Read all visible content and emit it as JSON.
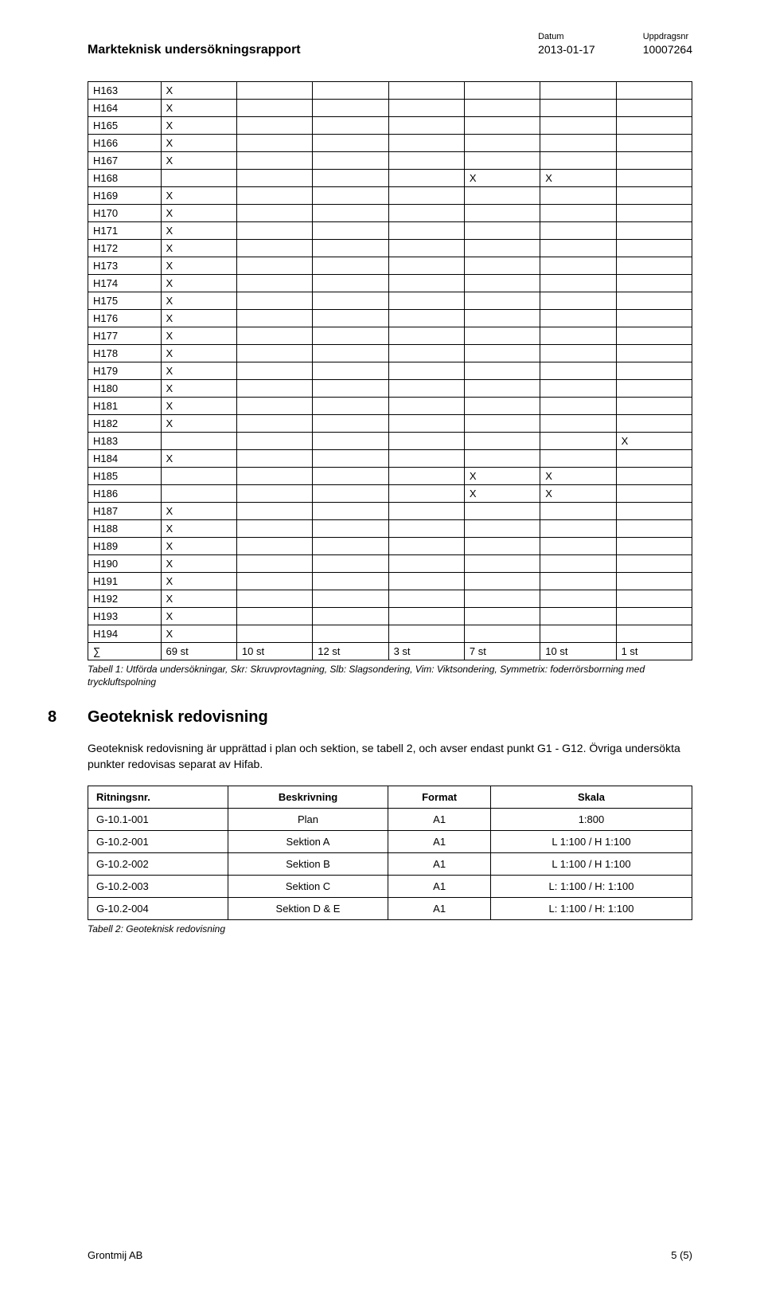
{
  "header": {
    "title": "Markteknisk undersökningsrapport",
    "date_label": "Datum",
    "date_value": "2013-01-17",
    "assignment_label": "Uppdragsnr",
    "assignment_value": "10007264"
  },
  "main_table": {
    "rows": [
      {
        "id": "H163",
        "cols": [
          "X",
          "",
          "",
          "",
          "",
          "",
          ""
        ]
      },
      {
        "id": "H164",
        "cols": [
          "X",
          "",
          "",
          "",
          "",
          "",
          ""
        ]
      },
      {
        "id": "H165",
        "cols": [
          "X",
          "",
          "",
          "",
          "",
          "",
          ""
        ]
      },
      {
        "id": "H166",
        "cols": [
          "X",
          "",
          "",
          "",
          "",
          "",
          ""
        ]
      },
      {
        "id": "H167",
        "cols": [
          "X",
          "",
          "",
          "",
          "",
          "",
          ""
        ]
      },
      {
        "id": "H168",
        "cols": [
          "",
          "",
          "",
          "",
          "X",
          "X",
          ""
        ]
      },
      {
        "id": "H169",
        "cols": [
          "X",
          "",
          "",
          "",
          "",
          "",
          ""
        ]
      },
      {
        "id": "H170",
        "cols": [
          "X",
          "",
          "",
          "",
          "",
          "",
          ""
        ]
      },
      {
        "id": "H171",
        "cols": [
          "X",
          "",
          "",
          "",
          "",
          "",
          ""
        ]
      },
      {
        "id": "H172",
        "cols": [
          "X",
          "",
          "",
          "",
          "",
          "",
          ""
        ]
      },
      {
        "id": "H173",
        "cols": [
          "X",
          "",
          "",
          "",
          "",
          "",
          ""
        ]
      },
      {
        "id": "H174",
        "cols": [
          "X",
          "",
          "",
          "",
          "",
          "",
          ""
        ]
      },
      {
        "id": "H175",
        "cols": [
          "X",
          "",
          "",
          "",
          "",
          "",
          ""
        ]
      },
      {
        "id": "H176",
        "cols": [
          "X",
          "",
          "",
          "",
          "",
          "",
          ""
        ]
      },
      {
        "id": "H177",
        "cols": [
          "X",
          "",
          "",
          "",
          "",
          "",
          ""
        ]
      },
      {
        "id": "H178",
        "cols": [
          "X",
          "",
          "",
          "",
          "",
          "",
          ""
        ]
      },
      {
        "id": "H179",
        "cols": [
          "X",
          "",
          "",
          "",
          "",
          "",
          ""
        ]
      },
      {
        "id": "H180",
        "cols": [
          "X",
          "",
          "",
          "",
          "",
          "",
          ""
        ]
      },
      {
        "id": "H181",
        "cols": [
          "X",
          "",
          "",
          "",
          "",
          "",
          ""
        ]
      },
      {
        "id": "H182",
        "cols": [
          "X",
          "",
          "",
          "",
          "",
          "",
          ""
        ]
      },
      {
        "id": "H183",
        "cols": [
          "",
          "",
          "",
          "",
          "",
          "",
          "X"
        ]
      },
      {
        "id": "H184",
        "cols": [
          "X",
          "",
          "",
          "",
          "",
          "",
          ""
        ]
      },
      {
        "id": "H185",
        "cols": [
          "",
          "",
          "",
          "",
          "X",
          "X",
          ""
        ]
      },
      {
        "id": "H186",
        "cols": [
          "",
          "",
          "",
          "",
          "X",
          "X",
          ""
        ]
      },
      {
        "id": "H187",
        "cols": [
          "X",
          "",
          "",
          "",
          "",
          "",
          ""
        ]
      },
      {
        "id": "H188",
        "cols": [
          "X",
          "",
          "",
          "",
          "",
          "",
          ""
        ]
      },
      {
        "id": "H189",
        "cols": [
          "X",
          "",
          "",
          "",
          "",
          "",
          ""
        ]
      },
      {
        "id": "H190",
        "cols": [
          "X",
          "",
          "",
          "",
          "",
          "",
          ""
        ]
      },
      {
        "id": "H191",
        "cols": [
          "X",
          "",
          "",
          "",
          "",
          "",
          ""
        ]
      },
      {
        "id": "H192",
        "cols": [
          "X",
          "",
          "",
          "",
          "",
          "",
          ""
        ]
      },
      {
        "id": "H193",
        "cols": [
          "X",
          "",
          "",
          "",
          "",
          "",
          ""
        ]
      },
      {
        "id": "H194",
        "cols": [
          "X",
          "",
          "",
          "",
          "",
          "",
          ""
        ]
      }
    ],
    "summary": {
      "id": "∑",
      "cols": [
        "69 st",
        "10 st",
        "12 st",
        "3 st",
        "7 st",
        "10 st",
        "1 st"
      ]
    },
    "caption": "Tabell 1: Utförda undersökningar, Skr: Skruvprovtagning, Slb: Slagsondering, Vim: Viktsondering, Symmetrix: foderrörsborrning med tryckluftspolning"
  },
  "section8": {
    "number": "8",
    "title": "Geoteknisk redovisning",
    "body": "Geoteknisk redovisning är upprättad i plan och sektion, se tabell 2, och avser endast punkt G1 - G12. Övriga undersökta punkter redovisas separat av Hifab."
  },
  "drawings_table": {
    "headers": [
      "Ritningsnr.",
      "Beskrivning",
      "Format",
      "Skala"
    ],
    "rows": [
      [
        "G-10.1-001",
        "Plan",
        "A1",
        "1:800"
      ],
      [
        "G-10.2-001",
        "Sektion A",
        "A1",
        "L 1:100 / H 1:100"
      ],
      [
        "G-10.2-002",
        "Sektion B",
        "A1",
        "L 1:100 / H 1:100"
      ],
      [
        "G-10.2-003",
        "Sektion C",
        "A1",
        "L: 1:100 / H: 1:100"
      ],
      [
        "G-10.2-004",
        "Sektion D & E",
        "A1",
        "L: 1:100 / H: 1:100"
      ]
    ],
    "caption": "Tabell 2: Geoteknisk redovisning"
  },
  "footer": {
    "left": "Grontmij AB",
    "right": "5 (5)"
  }
}
